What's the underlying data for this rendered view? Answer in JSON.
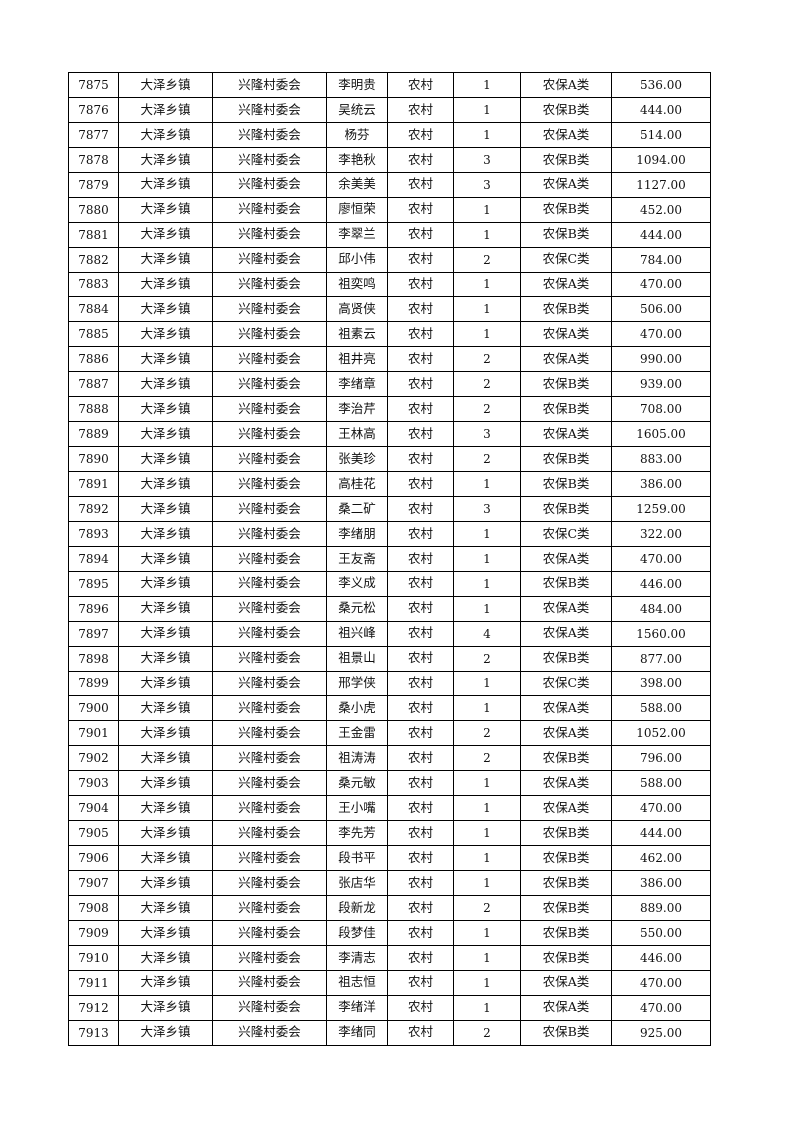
{
  "table": {
    "rows": [
      [
        "7875",
        "大泽乡镇",
        "兴隆村委会",
        "李明贵",
        "农村",
        "1",
        "农保A类",
        "536.00"
      ],
      [
        "7876",
        "大泽乡镇",
        "兴隆村委会",
        "吴统云",
        "农村",
        "1",
        "农保B类",
        "444.00"
      ],
      [
        "7877",
        "大泽乡镇",
        "兴隆村委会",
        "杨芬",
        "农村",
        "1",
        "农保A类",
        "514.00"
      ],
      [
        "7878",
        "大泽乡镇",
        "兴隆村委会",
        "李艳秋",
        "农村",
        "3",
        "农保B类",
        "1094.00"
      ],
      [
        "7879",
        "大泽乡镇",
        "兴隆村委会",
        "余美美",
        "农村",
        "3",
        "农保A类",
        "1127.00"
      ],
      [
        "7880",
        "大泽乡镇",
        "兴隆村委会",
        "廖恒荣",
        "农村",
        "1",
        "农保B类",
        "452.00"
      ],
      [
        "7881",
        "大泽乡镇",
        "兴隆村委会",
        "李翠兰",
        "农村",
        "1",
        "农保B类",
        "444.00"
      ],
      [
        "7882",
        "大泽乡镇",
        "兴隆村委会",
        "邱小伟",
        "农村",
        "2",
        "农保C类",
        "784.00"
      ],
      [
        "7883",
        "大泽乡镇",
        "兴隆村委会",
        "祖奕鸣",
        "农村",
        "1",
        "农保A类",
        "470.00"
      ],
      [
        "7884",
        "大泽乡镇",
        "兴隆村委会",
        "高贤侠",
        "农村",
        "1",
        "农保B类",
        "506.00"
      ],
      [
        "7885",
        "大泽乡镇",
        "兴隆村委会",
        "祖素云",
        "农村",
        "1",
        "农保A类",
        "470.00"
      ],
      [
        "7886",
        "大泽乡镇",
        "兴隆村委会",
        "祖井亮",
        "农村",
        "2",
        "农保A类",
        "990.00"
      ],
      [
        "7887",
        "大泽乡镇",
        "兴隆村委会",
        "李绪章",
        "农村",
        "2",
        "农保B类",
        "939.00"
      ],
      [
        "7888",
        "大泽乡镇",
        "兴隆村委会",
        "李治芹",
        "农村",
        "2",
        "农保B类",
        "708.00"
      ],
      [
        "7889",
        "大泽乡镇",
        "兴隆村委会",
        "王林高",
        "农村",
        "3",
        "农保A类",
        "1605.00"
      ],
      [
        "7890",
        "大泽乡镇",
        "兴隆村委会",
        "张美珍",
        "农村",
        "2",
        "农保B类",
        "883.00"
      ],
      [
        "7891",
        "大泽乡镇",
        "兴隆村委会",
        "高桂花",
        "农村",
        "1",
        "农保B类",
        "386.00"
      ],
      [
        "7892",
        "大泽乡镇",
        "兴隆村委会",
        "桑二矿",
        "农村",
        "3",
        "农保B类",
        "1259.00"
      ],
      [
        "7893",
        "大泽乡镇",
        "兴隆村委会",
        "李绪朋",
        "农村",
        "1",
        "农保C类",
        "322.00"
      ],
      [
        "7894",
        "大泽乡镇",
        "兴隆村委会",
        "王友斋",
        "农村",
        "1",
        "农保A类",
        "470.00"
      ],
      [
        "7895",
        "大泽乡镇",
        "兴隆村委会",
        "李义成",
        "农村",
        "1",
        "农保B类",
        "446.00"
      ],
      [
        "7896",
        "大泽乡镇",
        "兴隆村委会",
        "桑元松",
        "农村",
        "1",
        "农保A类",
        "484.00"
      ],
      [
        "7897",
        "大泽乡镇",
        "兴隆村委会",
        "祖兴峰",
        "农村",
        "4",
        "农保A类",
        "1560.00"
      ],
      [
        "7898",
        "大泽乡镇",
        "兴隆村委会",
        "祖景山",
        "农村",
        "2",
        "农保B类",
        "877.00"
      ],
      [
        "7899",
        "大泽乡镇",
        "兴隆村委会",
        "邢学侠",
        "农村",
        "1",
        "农保C类",
        "398.00"
      ],
      [
        "7900",
        "大泽乡镇",
        "兴隆村委会",
        "桑小虎",
        "农村",
        "1",
        "农保A类",
        "588.00"
      ],
      [
        "7901",
        "大泽乡镇",
        "兴隆村委会",
        "王金雷",
        "农村",
        "2",
        "农保A类",
        "1052.00"
      ],
      [
        "7902",
        "大泽乡镇",
        "兴隆村委会",
        "祖涛涛",
        "农村",
        "2",
        "农保B类",
        "796.00"
      ],
      [
        "7903",
        "大泽乡镇",
        "兴隆村委会",
        "桑元敏",
        "农村",
        "1",
        "农保A类",
        "588.00"
      ],
      [
        "7904",
        "大泽乡镇",
        "兴隆村委会",
        "王小嘴",
        "农村",
        "1",
        "农保A类",
        "470.00"
      ],
      [
        "7905",
        "大泽乡镇",
        "兴隆村委会",
        "李先芳",
        "农村",
        "1",
        "农保B类",
        "444.00"
      ],
      [
        "7906",
        "大泽乡镇",
        "兴隆村委会",
        "段书平",
        "农村",
        "1",
        "农保B类",
        "462.00"
      ],
      [
        "7907",
        "大泽乡镇",
        "兴隆村委会",
        "张店华",
        "农村",
        "1",
        "农保B类",
        "386.00"
      ],
      [
        "7908",
        "大泽乡镇",
        "兴隆村委会",
        "段新龙",
        "农村",
        "2",
        "农保B类",
        "889.00"
      ],
      [
        "7909",
        "大泽乡镇",
        "兴隆村委会",
        "段梦佳",
        "农村",
        "1",
        "农保B类",
        "550.00"
      ],
      [
        "7910",
        "大泽乡镇",
        "兴隆村委会",
        "李清志",
        "农村",
        "1",
        "农保B类",
        "446.00"
      ],
      [
        "7911",
        "大泽乡镇",
        "兴隆村委会",
        "祖志恒",
        "农村",
        "1",
        "农保A类",
        "470.00"
      ],
      [
        "7912",
        "大泽乡镇",
        "兴隆村委会",
        "李绪洋",
        "农村",
        "1",
        "农保A类",
        "470.00"
      ],
      [
        "7913",
        "大泽乡镇",
        "兴隆村委会",
        "李绪同",
        "农村",
        "2",
        "农保B类",
        "925.00"
      ]
    ]
  }
}
